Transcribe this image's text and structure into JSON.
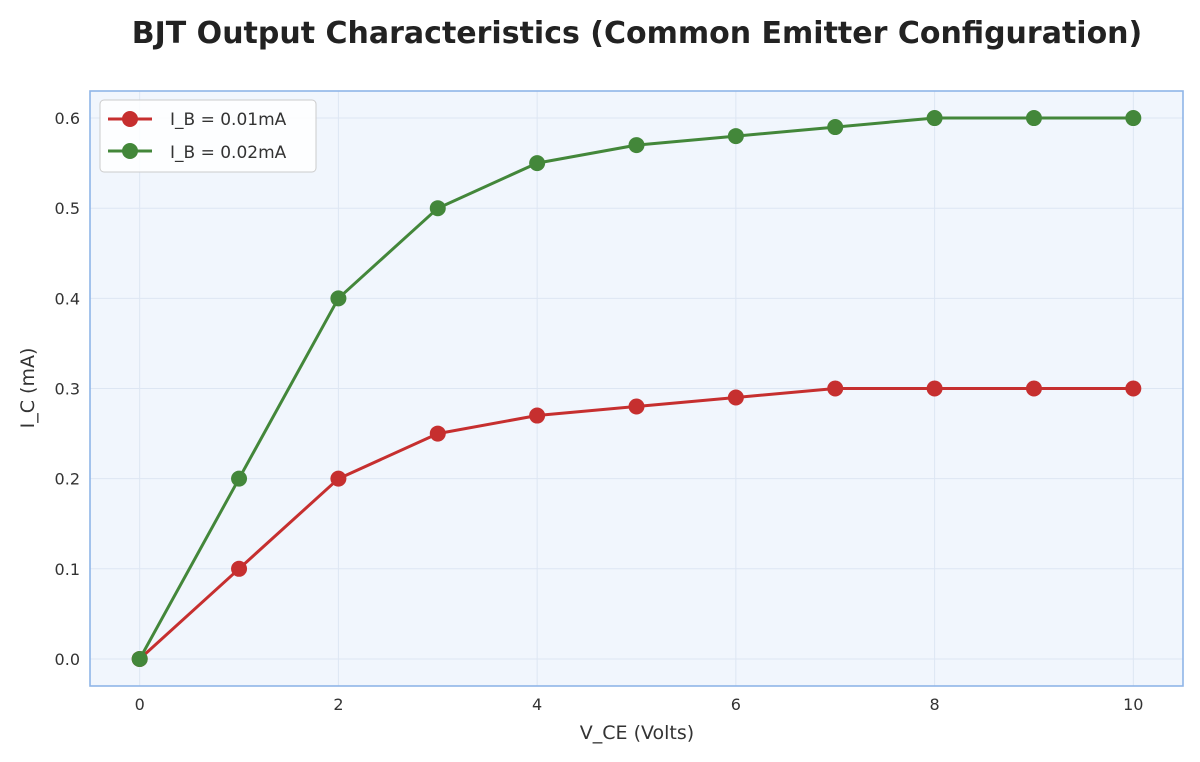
{
  "chart_data": {
    "type": "line",
    "title": "BJT Output Characteristics (Common Emitter Configuration)",
    "xlabel": "V_CE (Volts)",
    "ylabel": "I_C (mA)",
    "xlim": [
      -0.5,
      10.5
    ],
    "ylim": [
      -0.03,
      0.63
    ],
    "xticks": [
      0,
      2,
      4,
      6,
      8,
      10
    ],
    "yticks": [
      0.0,
      0.1,
      0.2,
      0.3,
      0.4,
      0.5,
      0.6
    ],
    "xtick_labels": [
      "0",
      "2",
      "4",
      "6",
      "8",
      "10"
    ],
    "ytick_labels": [
      "0.0",
      "0.1",
      "0.2",
      "0.3",
      "0.4",
      "0.5",
      "0.6"
    ],
    "grid": true,
    "legend_position": "top-left",
    "x": [
      0,
      1,
      2,
      3,
      4,
      5,
      6,
      7,
      8,
      9,
      10
    ],
    "series": [
      {
        "name": "I_B = 0.01mA",
        "color": "#c62f2f",
        "values": [
          0.0,
          0.1,
          0.2,
          0.25,
          0.27,
          0.28,
          0.29,
          0.3,
          0.3,
          0.3,
          0.3
        ]
      },
      {
        "name": "I_B = 0.02mA",
        "color": "#43873a",
        "values": [
          0.0,
          0.2,
          0.4,
          0.5,
          0.55,
          0.57,
          0.58,
          0.59,
          0.6,
          0.6,
          0.6
        ]
      }
    ],
    "colors": {
      "plot_background": "#f1f6fd",
      "plot_border": "#8fb5e8",
      "grid": "#dde6f3"
    }
  }
}
